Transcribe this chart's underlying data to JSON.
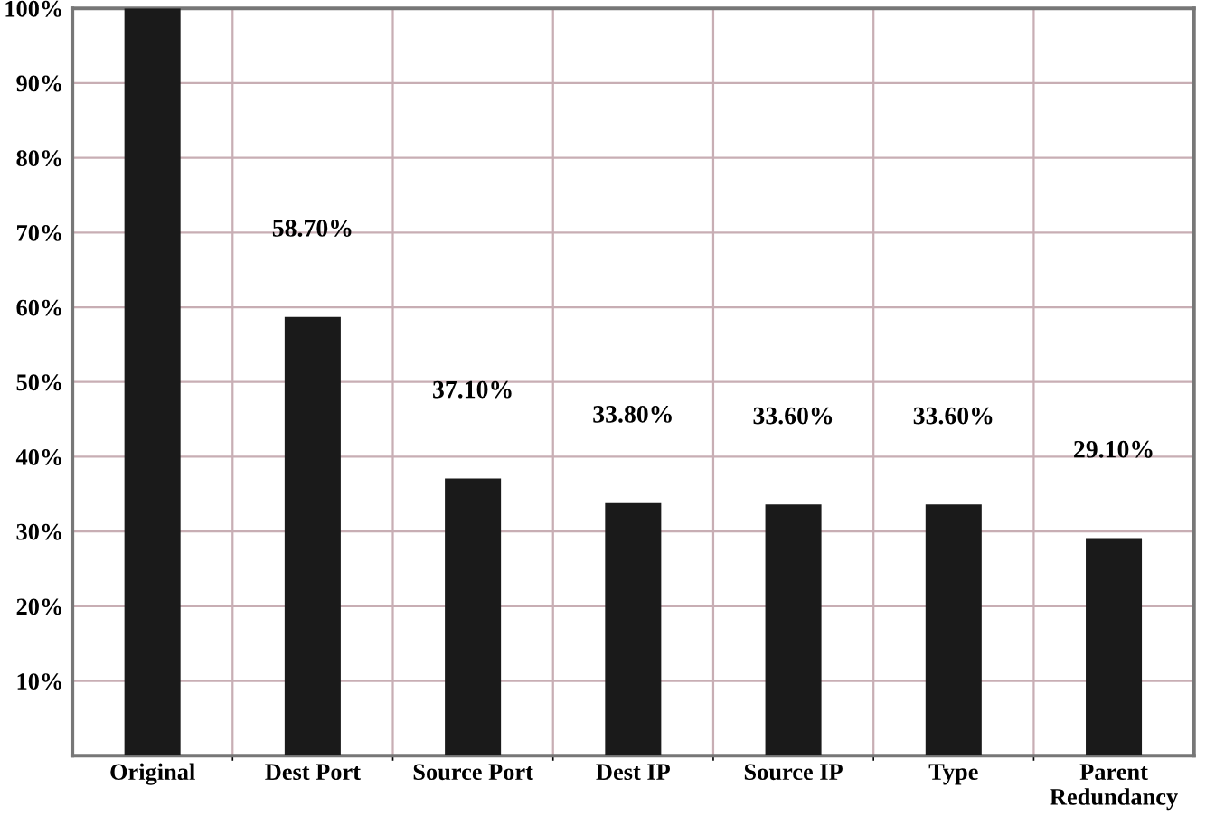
{
  "chart_data": {
    "type": "bar",
    "categories": [
      "Original",
      "Dest Port",
      "Source Port",
      "Dest IP",
      "Source IP",
      "Type",
      "Parent\nRedundancy"
    ],
    "values": [
      100,
      58.7,
      37.1,
      33.8,
      33.6,
      33.6,
      29.1
    ],
    "value_labels": [
      null,
      "58.70%",
      "37.10%",
      "33.80%",
      "33.60%",
      "33.60%",
      "29.10%"
    ],
    "color": "#1a1a1a",
    "ylim": [
      0,
      100
    ],
    "yticks": [
      {
        "value": 10,
        "label": "10%"
      },
      {
        "value": 20,
        "label": "20%"
      },
      {
        "value": 30,
        "label": "30%"
      },
      {
        "value": 40,
        "label": "40%"
      },
      {
        "value": 50,
        "label": "50%"
      },
      {
        "value": 60,
        "label": "60%"
      },
      {
        "value": 70,
        "label": "70%"
      },
      {
        "value": 80,
        "label": "80%"
      },
      {
        "value": 90,
        "label": "90%"
      },
      {
        "value": 100,
        "label": "100%"
      }
    ],
    "grid": true
  }
}
